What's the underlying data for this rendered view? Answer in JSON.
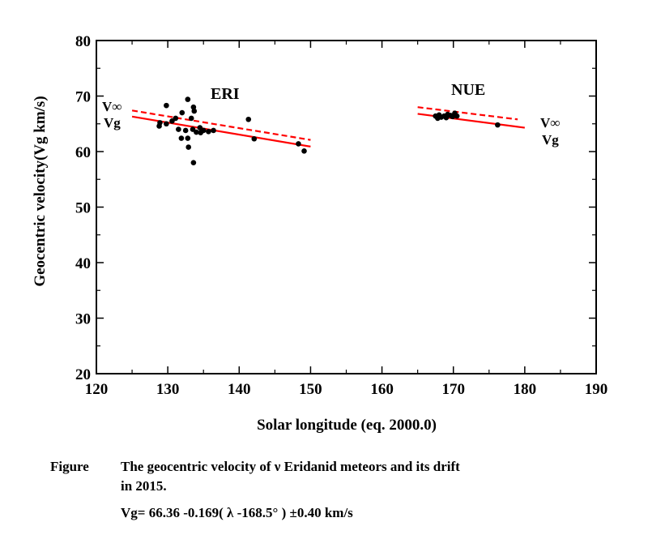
{
  "chart_data": {
    "type": "scatter",
    "xlabel": "Solar longitude (eq. 2000.0)",
    "ylabel": "Geocentric velocity(Vg km/s)",
    "xlim": [
      120,
      190
    ],
    "ylim": [
      20,
      80
    ],
    "xticks": [
      120,
      130,
      140,
      150,
      160,
      170,
      180,
      190
    ],
    "yticks": [
      20,
      30,
      40,
      50,
      60,
      70,
      80
    ],
    "points": [
      [
        128.8,
        64.6
      ],
      [
        128.9,
        65.2
      ],
      [
        129.8,
        68.3
      ],
      [
        129.8,
        65.0
      ],
      [
        130.6,
        65.5
      ],
      [
        131.1,
        66.0
      ],
      [
        131.5,
        64.0
      ],
      [
        131.9,
        62.4
      ],
      [
        132.0,
        67.0
      ],
      [
        132.5,
        63.8
      ],
      [
        132.8,
        69.4
      ],
      [
        132.8,
        62.4
      ],
      [
        132.9,
        60.8
      ],
      [
        133.3,
        66.0
      ],
      [
        133.5,
        64.0
      ],
      [
        133.6,
        68.0
      ],
      [
        133.7,
        67.3
      ],
      [
        133.6,
        58.0
      ],
      [
        134.0,
        63.5
      ],
      [
        134.5,
        64.3
      ],
      [
        134.6,
        63.4
      ],
      [
        135.0,
        63.8
      ],
      [
        135.7,
        63.6
      ],
      [
        136.4,
        63.8
      ],
      [
        141.3,
        65.8
      ],
      [
        142.1,
        62.3
      ],
      [
        148.3,
        61.4
      ],
      [
        149.1,
        60.1
      ],
      [
        167.5,
        66.4
      ],
      [
        167.8,
        66.0
      ],
      [
        168.0,
        66.6
      ],
      [
        168.3,
        66.2
      ],
      [
        168.7,
        66.4
      ],
      [
        169.0,
        66.1
      ],
      [
        169.2,
        66.7
      ],
      [
        169.6,
        66.5
      ],
      [
        169.9,
        66.3
      ],
      [
        170.2,
        66.9
      ],
      [
        170.5,
        66.4
      ],
      [
        176.2,
        64.8
      ]
    ],
    "series": [
      {
        "name": "V∞ (ERI)",
        "style": "dashed",
        "color": "#ff0000",
        "x": [
          125,
          150
        ],
        "y": [
          67.4,
          62.1
        ]
      },
      {
        "name": "Vg (ERI)",
        "style": "solid",
        "color": "#ff0000",
        "x": [
          125,
          150
        ],
        "y": [
          66.3,
          60.9
        ]
      },
      {
        "name": "V∞ (NUE)",
        "style": "dashed",
        "color": "#ff0000",
        "x": [
          165,
          179
        ],
        "y": [
          68.0,
          65.8
        ]
      },
      {
        "name": "Vg (NUE)",
        "style": "solid",
        "color": "#ff0000",
        "x": [
          165,
          180
        ],
        "y": [
          66.8,
          64.3
        ]
      }
    ],
    "annotations": {
      "eri": "ERI",
      "nue": "NUE",
      "v_inf": "V∞",
      "vg": "Vg"
    }
  },
  "caption": {
    "label": "Figure",
    "line1": "The geocentric velocity of  ν Eridanid meteors and its drift",
    "line2": "in 2015.",
    "formula": "Vg= 66.36 -0.169( λ -168.5°  ) ±0.40 km/s"
  }
}
